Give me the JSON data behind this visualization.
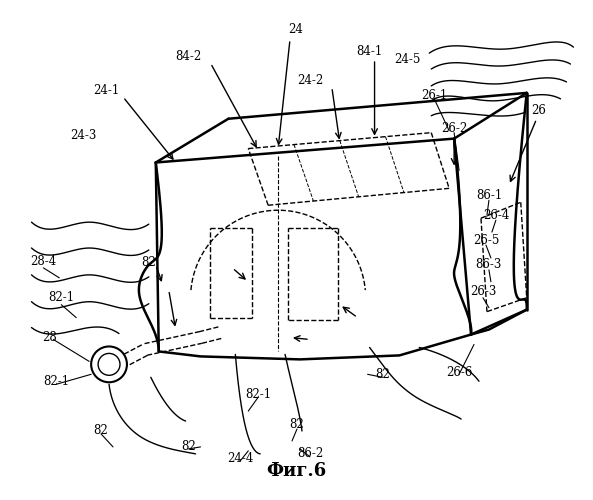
{
  "title": "Фиг.6",
  "bg_color": "#ffffff",
  "line_color": "#000000",
  "fig_width": 5.93,
  "fig_height": 5.0,
  "dpi": 100,
  "labels": [
    [
      296,
      28,
      "24"
    ],
    [
      188,
      55,
      "84-2"
    ],
    [
      370,
      50,
      "84-1"
    ],
    [
      105,
      90,
      "24-1"
    ],
    [
      310,
      80,
      "24-2"
    ],
    [
      82,
      135,
      "24-3"
    ],
    [
      408,
      58,
      "24-5"
    ],
    [
      435,
      95,
      "26-1"
    ],
    [
      455,
      128,
      "26-2"
    ],
    [
      540,
      110,
      "26"
    ],
    [
      490,
      195,
      "86-1"
    ],
    [
      497,
      215,
      "26-4"
    ],
    [
      487,
      240,
      "26-5"
    ],
    [
      490,
      265,
      "86-3"
    ],
    [
      484,
      292,
      "26-3"
    ],
    [
      42,
      262,
      "28-4"
    ],
    [
      148,
      263,
      "82"
    ],
    [
      60,
      298,
      "82-1"
    ],
    [
      48,
      338,
      "28"
    ],
    [
      55,
      382,
      "82-1"
    ],
    [
      100,
      432,
      "82"
    ],
    [
      188,
      448,
      "82"
    ],
    [
      258,
      395,
      "82-1"
    ],
    [
      297,
      425,
      "82"
    ],
    [
      310,
      455,
      "86-2"
    ],
    [
      240,
      460,
      "24-4"
    ],
    [
      383,
      375,
      "82"
    ],
    [
      460,
      373,
      "26-6"
    ]
  ]
}
